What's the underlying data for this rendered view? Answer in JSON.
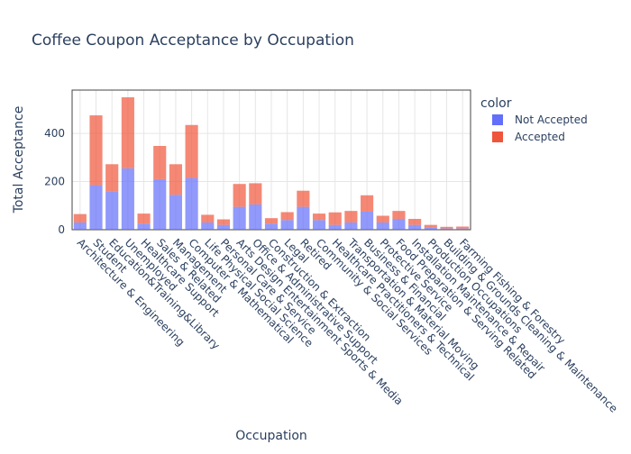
{
  "chart_data": {
    "type": "bar",
    "stacked": true,
    "title": "Coffee Coupon Acceptance by Occupation",
    "xlabel": "Occupation",
    "ylabel": "Total Acceptance",
    "ylim": [
      0,
      580
    ],
    "yticks": [
      0,
      200,
      400
    ],
    "grid": true,
    "legend": {
      "title": "color",
      "placement": "right"
    },
    "categories": [
      "Architecture & Engineering",
      "Student",
      "Education&Training&Library",
      "Unemployed",
      "Healthcare Support",
      "Sales & Related",
      "Management",
      "Computer & Mathematical",
      "Life Physical Social Science",
      "Personal Care & Service",
      "Arts Design Entertainment Sports & Media",
      "Office & Administrative Support",
      "Construction & Extraction",
      "Legal",
      "Retired",
      "Community & Social Services",
      "Healthcare Practitioners & Technical",
      "Transportation & Material Moving",
      "Business & Financial",
      "Protective Service",
      "Food Preparation & Serving Related",
      "Installation Maintenance & Repair",
      "Production Occupations",
      "Building & Grounds Cleaning & Maintenance",
      "Farming Fishing & Forestry"
    ],
    "series": [
      {
        "name": "Not Accepted",
        "color": "#636efa",
        "values": [
          30,
          185,
          160,
          255,
          25,
          210,
          145,
          215,
          30,
          20,
          95,
          105,
          25,
          40,
          95,
          40,
          20,
          30,
          75,
          30,
          45,
          20,
          10,
          5,
          5
        ]
      },
      {
        "name": "Accepted",
        "color": "#ef553b",
        "values": [
          35,
          290,
          112,
          295,
          42,
          138,
          127,
          220,
          32,
          23,
          95,
          88,
          23,
          33,
          67,
          27,
          52,
          48,
          68,
          28,
          33,
          25,
          10,
          7,
          8
        ]
      }
    ]
  }
}
